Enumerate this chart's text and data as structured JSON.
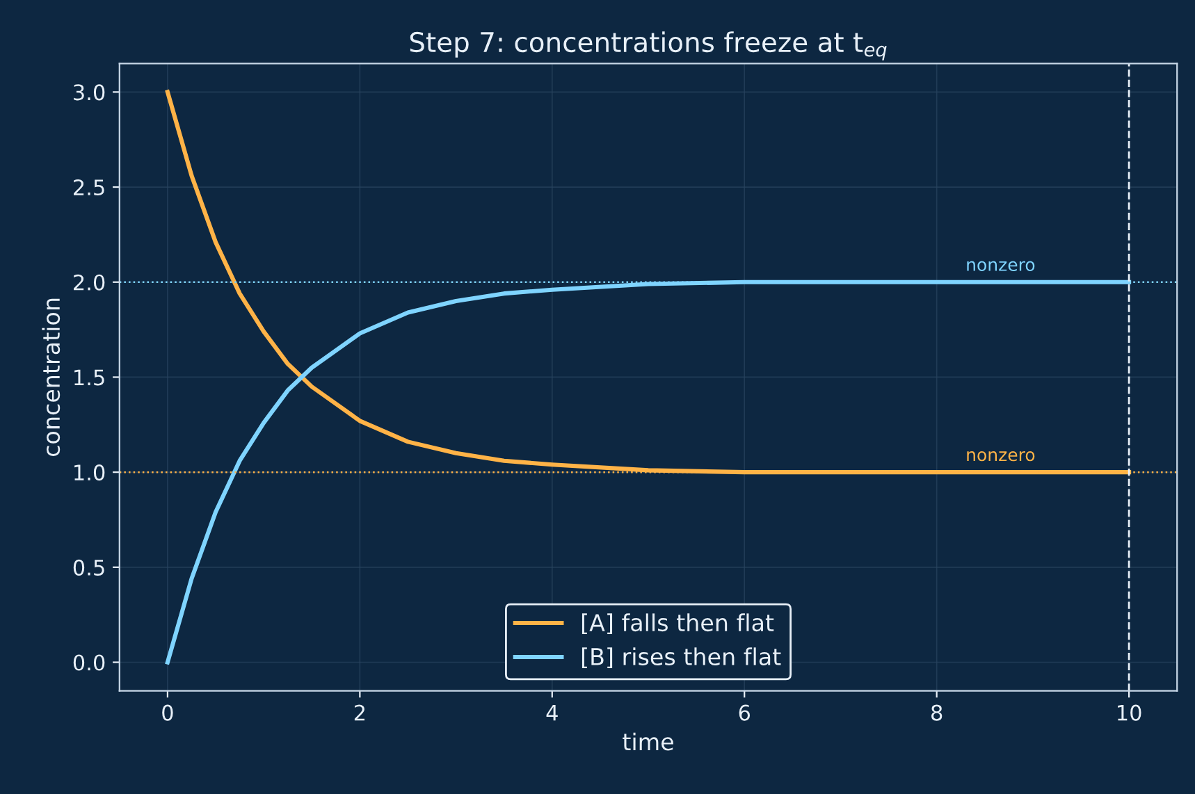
{
  "chart_data": {
    "type": "line",
    "title": "Step 7: concentrations freeze at t$_{eq}$",
    "xlabel": "time",
    "ylabel": "concentration",
    "x": [
      0,
      0.25,
      0.5,
      0.75,
      1,
      1.25,
      1.5,
      2,
      2.5,
      3,
      3.5,
      4,
      5,
      6,
      7,
      8,
      10
    ],
    "series": [
      {
        "name": "[A] falls then flat",
        "color": "#ffb347",
        "values": [
          3.0,
          2.56,
          2.21,
          1.94,
          1.74,
          1.57,
          1.45,
          1.27,
          1.16,
          1.1,
          1.06,
          1.04,
          1.01,
          1.0,
          1.0,
          1.0,
          1.0
        ]
      },
      {
        "name": "[B] rises then flat",
        "color": "#7fd4ff",
        "values": [
          0.0,
          0.44,
          0.79,
          1.06,
          1.26,
          1.43,
          1.55,
          1.73,
          1.84,
          1.9,
          1.94,
          1.96,
          1.99,
          2.0,
          2.0,
          2.0,
          2.0
        ]
      }
    ],
    "ref_lines": [
      {
        "axis": "y",
        "value": 2.0,
        "label": "nonzero",
        "color": "#7fd4ff",
        "line_style": "dotted"
      },
      {
        "axis": "y",
        "value": 1.0,
        "label": "nonzero",
        "color": "#ffb347",
        "line_style": "dotted"
      },
      {
        "axis": "x",
        "value": 10,
        "label": null,
        "color": "#e8f0f8",
        "line_style": "dashed"
      }
    ],
    "xlim": [
      -0.5,
      10.5
    ],
    "xticks": [
      0,
      2,
      4,
      6,
      8,
      10
    ],
    "ylim": [
      -0.15,
      3.15
    ],
    "yticks": [
      {
        "value": 0,
        "label": "0.0"
      },
      0.5,
      {
        "value": 1,
        "label": "1.0"
      },
      1.5,
      {
        "value": 2,
        "label": "2.0"
      },
      2.5,
      {
        "value": 3,
        "label": "3.0"
      }
    ],
    "grid": true,
    "legend": "bottom",
    "marker": "none",
    "line_style": "solid"
  }
}
